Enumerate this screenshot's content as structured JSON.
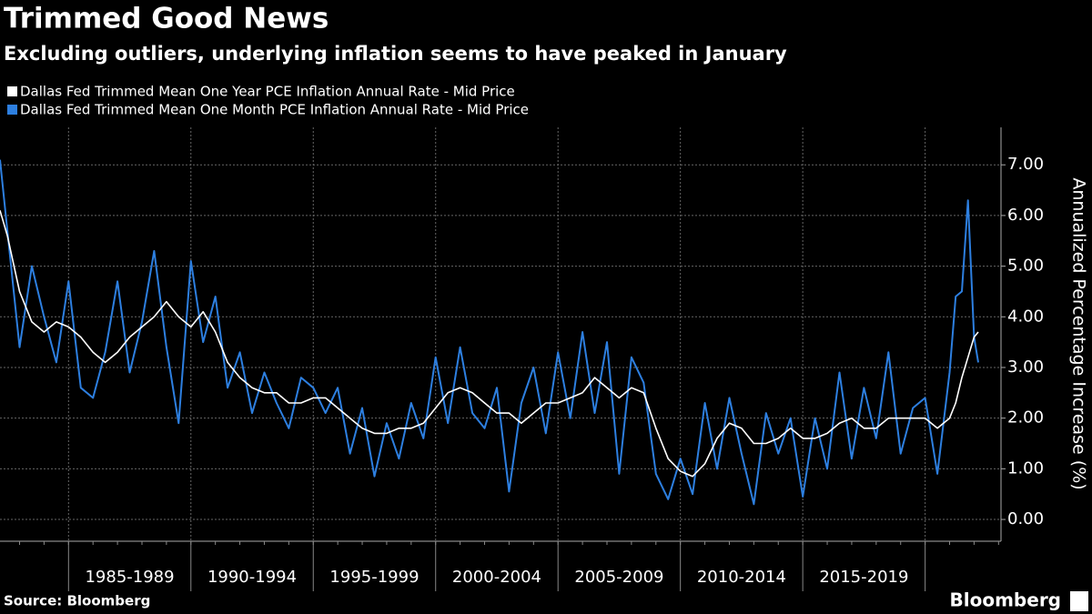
{
  "chart_data": {
    "type": "line",
    "title": "Trimmed Good News",
    "subtitle": "Excluding outliers, underlying inflation seems to have peaked in January",
    "y_label": "Annualized Percentage Increase (%)",
    "source": "Source: Bloomberg",
    "brand": "Bloomberg",
    "x": [
      1982.2,
      1982.5,
      1983,
      1983.5,
      1984,
      1984.5,
      1985,
      1985.5,
      1986,
      1986.5,
      1987,
      1987.5,
      1988,
      1988.5,
      1989,
      1989.5,
      1990,
      1990.5,
      1991,
      1991.5,
      1992,
      1992.5,
      1993,
      1993.5,
      1994,
      1994.5,
      1995,
      1995.5,
      1996,
      1996.5,
      1997,
      1997.5,
      1998,
      1998.5,
      1999,
      1999.5,
      2000,
      2000.5,
      2001,
      2001.5,
      2002,
      2002.5,
      2003,
      2003.5,
      2004,
      2004.5,
      2005,
      2005.5,
      2006,
      2006.5,
      2007,
      2007.5,
      2008,
      2008.5,
      2009,
      2009.5,
      2010,
      2010.5,
      2011,
      2011.5,
      2012,
      2012.5,
      2013,
      2013.5,
      2014,
      2014.5,
      2015,
      2015.5,
      2016,
      2016.5,
      2017,
      2017.5,
      2018,
      2018.5,
      2019,
      2019.5,
      2020,
      2020.5,
      2021,
      2021.25,
      2021.5,
      2021.75,
      2022.0,
      2022.17
    ],
    "series": [
      {
        "name": "Dallas Fed Trimmed Mean One Month PCE Inflation Annual Rate - Mid Price",
        "color": "#2d7fe0",
        "values": [
          7.1,
          5.7,
          3.4,
          5.0,
          4.0,
          3.1,
          4.7,
          2.6,
          2.4,
          3.3,
          4.7,
          2.9,
          3.9,
          5.3,
          3.4,
          1.9,
          5.1,
          3.5,
          4.4,
          2.6,
          3.3,
          2.1,
          2.9,
          2.3,
          1.8,
          2.8,
          2.6,
          2.1,
          2.6,
          1.3,
          2.2,
          0.85,
          1.9,
          1.2,
          2.3,
          1.6,
          3.2,
          1.9,
          3.4,
          2.1,
          1.8,
          2.6,
          0.55,
          2.3,
          3.0,
          1.7,
          3.3,
          2.0,
          3.7,
          2.1,
          3.5,
          0.9,
          3.2,
          2.7,
          0.9,
          0.4,
          1.2,
          0.5,
          2.3,
          1.0,
          2.4,
          1.3,
          0.3,
          2.1,
          1.3,
          2.0,
          0.45,
          2.0,
          1.0,
          2.9,
          1.2,
          2.6,
          1.6,
          3.3,
          1.3,
          2.2,
          2.4,
          0.9,
          2.9,
          4.4,
          4.5,
          6.3,
          3.6,
          3.1
        ]
      },
      {
        "name": "Dallas Fed Trimmed Mean One Year PCE Inflation Annual Rate - Mid Price",
        "color": "#ffffff",
        "values": [
          6.1,
          5.6,
          4.5,
          3.9,
          3.7,
          3.9,
          3.8,
          3.6,
          3.3,
          3.1,
          3.3,
          3.6,
          3.8,
          4.0,
          4.3,
          4.0,
          3.8,
          4.1,
          3.7,
          3.1,
          2.8,
          2.6,
          2.5,
          2.5,
          2.3,
          2.3,
          2.4,
          2.4,
          2.2,
          2.0,
          1.8,
          1.7,
          1.7,
          1.8,
          1.8,
          1.9,
          2.2,
          2.5,
          2.6,
          2.5,
          2.3,
          2.1,
          2.1,
          1.9,
          2.1,
          2.3,
          2.3,
          2.4,
          2.5,
          2.8,
          2.6,
          2.4,
          2.6,
          2.5,
          1.8,
          1.2,
          0.95,
          0.85,
          1.1,
          1.6,
          1.9,
          1.8,
          1.5,
          1.5,
          1.6,
          1.8,
          1.6,
          1.6,
          1.7,
          1.9,
          2.0,
          1.8,
          1.8,
          2.0,
          2.0,
          2.0,
          2.0,
          1.8,
          2.0,
          2.3,
          2.8,
          3.2,
          3.6,
          3.7
        ]
      }
    ],
    "legend_order": [
      1,
      0
    ],
    "xlim": [
      1982.2,
      2023.1
    ],
    "xticks": [
      1985,
      1990,
      1995,
      2000,
      2005,
      2010,
      2015,
      2020
    ],
    "period_labels": [
      "1985-1989",
      "1990-1994",
      "1995-1999",
      "2000-2004",
      "2005-2009",
      "2010-2014",
      "2015-2019"
    ],
    "ylim": [
      -0.43,
      7.74
    ],
    "yticks": [
      {
        "value": 0,
        "label": "0.00"
      },
      {
        "value": 1,
        "label": "1.00"
      },
      {
        "value": 2,
        "label": "2.00"
      },
      {
        "value": 3,
        "label": "3.00"
      },
      {
        "value": 4,
        "label": "4.00"
      },
      {
        "value": 5,
        "label": "5.00"
      },
      {
        "value": 6,
        "label": "6.00"
      },
      {
        "value": 7,
        "label": "7.00"
      }
    ],
    "grid": true
  }
}
